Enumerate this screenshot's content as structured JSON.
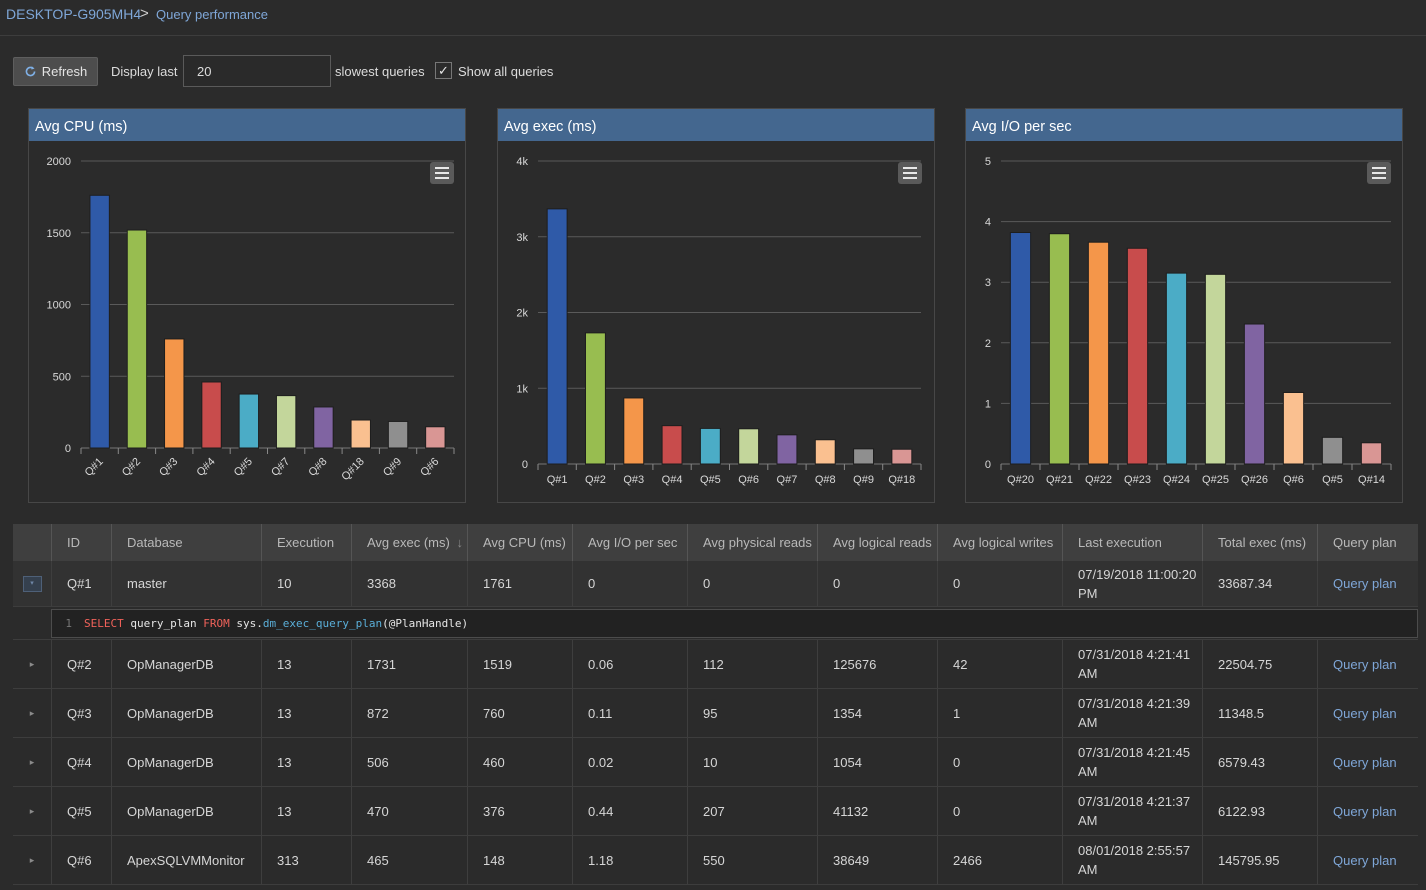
{
  "breadcrumb": {
    "root": "DESKTOP-G905MH4",
    "separator": ">",
    "page": "Query performance"
  },
  "toolbar": {
    "refresh_label": "Refresh",
    "display_label": "Display last",
    "count_value": "20",
    "slowest_label": "slowest queries",
    "show_all_label": "Show all queries",
    "show_all_checked": true,
    "check_glyph": "✓"
  },
  "colors": {
    "accent": "#44678f",
    "link": "#7fa7d8",
    "bar_palette": [
      "#2f5aa8",
      "#98bd50",
      "#f4964a",
      "#c84c4c",
      "#4bacc6",
      "#c3d69b",
      "#8064a2",
      "#fac090",
      "#8f8f8f",
      "#d99694"
    ]
  },
  "chart_data": [
    {
      "type": "bar",
      "title": "Avg CPU (ms)",
      "categories": [
        "Q#1",
        "Q#2",
        "Q#3",
        "Q#4",
        "Q#5",
        "Q#7",
        "Q#8",
        "Q#18",
        "Q#9",
        "Q#6"
      ],
      "values": [
        1761,
        1519,
        760,
        460,
        376,
        365,
        286,
        195,
        185,
        148
      ],
      "ylim": [
        0,
        2000
      ],
      "yticks": [
        0,
        500,
        1000,
        1500,
        2000
      ],
      "ytick_labels": [
        "0",
        "500",
        "1000",
        "1500",
        "2000"
      ],
      "grid": true,
      "rotate_labels": true
    },
    {
      "type": "bar",
      "title": "Avg exec (ms)",
      "categories": [
        "Q#1",
        "Q#2",
        "Q#3",
        "Q#4",
        "Q#5",
        "Q#6",
        "Q#7",
        "Q#8",
        "Q#9",
        "Q#18"
      ],
      "values": [
        3368,
        1731,
        872,
        506,
        470,
        465,
        385,
        320,
        200,
        195
      ],
      "ylim": [
        0,
        4000
      ],
      "yticks": [
        0,
        1000,
        2000,
        3000,
        4000
      ],
      "ytick_labels": [
        "0",
        "1k",
        "2k",
        "3k",
        "4k"
      ],
      "grid": true,
      "rotate_labels": false
    },
    {
      "type": "bar",
      "title": "Avg I/O per sec",
      "categories": [
        "Q#20",
        "Q#21",
        "Q#22",
        "Q#23",
        "Q#24",
        "Q#25",
        "Q#26",
        "Q#6",
        "Q#5",
        "Q#14"
      ],
      "values": [
        3.82,
        3.8,
        3.66,
        3.56,
        3.15,
        3.13,
        2.31,
        1.18,
        0.44,
        0.35
      ],
      "ylim": [
        0,
        5
      ],
      "yticks": [
        0,
        1,
        2,
        3,
        4,
        5
      ],
      "ytick_labels": [
        "0",
        "1",
        "2",
        "3",
        "4",
        "5"
      ],
      "grid": true,
      "rotate_labels": false
    }
  ],
  "table": {
    "columns": [
      "",
      "ID",
      "Database",
      "Execution",
      "Avg exec (ms)",
      "Avg CPU (ms)",
      "Avg I/O per sec",
      "Avg physical reads",
      "Avg logical reads",
      "Avg logical writes",
      "Last execution",
      "Total exec (ms)",
      "Query plan"
    ],
    "sort_indicator": "↓",
    "rows": [
      [
        "",
        "Q#1",
        "master",
        "10",
        "3368",
        "1761",
        "0",
        "0",
        "0",
        "0",
        "07/19/2018 11:00:20 PM",
        "33687.34",
        "Query plan"
      ],
      [
        "",
        "Q#2",
        "OpManagerDB",
        "13",
        "1731",
        "1519",
        "0.06",
        "112",
        "125676",
        "42",
        "07/31/2018 4:21:41 AM",
        "22504.75",
        "Query plan"
      ],
      [
        "",
        "Q#3",
        "OpManagerDB",
        "13",
        "872",
        "760",
        "0.11",
        "95",
        "1354",
        "1",
        "07/31/2018 4:21:39 AM",
        "11348.5",
        "Query plan"
      ],
      [
        "",
        "Q#4",
        "OpManagerDB",
        "13",
        "506",
        "460",
        "0.02",
        "10",
        "1054",
        "0",
        "07/31/2018 4:21:45 AM",
        "6579.43",
        "Query plan"
      ],
      [
        "",
        "Q#5",
        "OpManagerDB",
        "13",
        "470",
        "376",
        "0.44",
        "207",
        "41132",
        "0",
        "07/31/2018 4:21:37 AM",
        "6122.93",
        "Query plan"
      ],
      [
        "",
        "Q#6",
        "ApexSQLVMMonitor",
        "313",
        "465",
        "148",
        "1.18",
        "550",
        "38649",
        "2466",
        "08/01/2018 2:55:57 AM",
        "145795.95",
        "Query plan"
      ]
    ],
    "expanded_row_sql": {
      "line_number": "1",
      "kw_select": "SELECT",
      "column": " query_plan ",
      "kw_from": "FROM",
      "schema": " sys.",
      "function": "dm_exec_query_plan",
      "args": "(@PlanHandle)"
    },
    "expand_glyph": "▸",
    "collapse_glyph": "▾"
  }
}
